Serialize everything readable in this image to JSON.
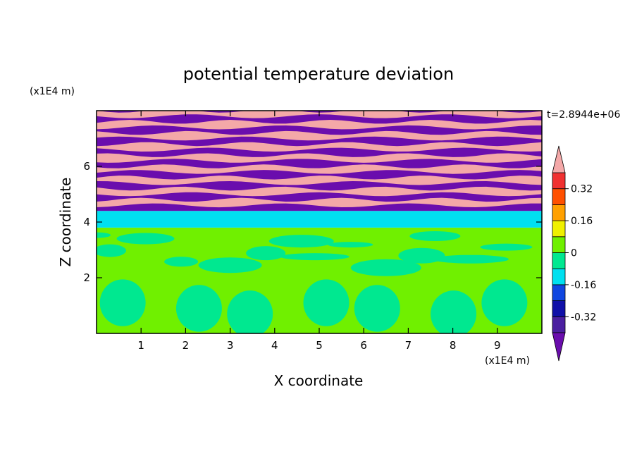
{
  "chart_data": {
    "type": "heatmap",
    "title": "potential temperature deviation",
    "xlabel": "X coordinate",
    "ylabel": "Z coordinate",
    "x_unit": "(x1E4 m)",
    "y_unit": "(x1E4 m)",
    "time_label": "t=2.8944e+06",
    "xlim": [
      0,
      10
    ],
    "ylim": [
      0,
      8
    ],
    "x_ticks": [
      1,
      2,
      3,
      4,
      5,
      6,
      7,
      8,
      9
    ],
    "y_ticks": [
      2,
      4,
      6
    ],
    "x_tick_labels": [
      "1",
      "2",
      "3",
      "4",
      "5",
      "6",
      "7",
      "8",
      "9"
    ],
    "y_tick_labels": [
      "2",
      "4",
      "6"
    ],
    "colorbar": {
      "levels": [
        -0.4,
        -0.32,
        -0.24,
        -0.16,
        -0.08,
        0,
        0.08,
        0.16,
        0.24,
        0.32,
        0.4
      ],
      "colors": [
        "#6a0dad",
        "#4b1fa0",
        "#1010a8",
        "#1046e0",
        "#00e0f0",
        "#00e890",
        "#70f000",
        "#f0f000",
        "#ffa000",
        "#ff5000",
        "#f03030",
        "#f4a8a8"
      ],
      "tick_labels": [
        "0.32",
        "0.16",
        "0",
        "-0.16",
        "-0.32"
      ],
      "tick_values": [
        0.32,
        0.16,
        0,
        -0.16,
        -0.32
      ]
    },
    "layers": [
      {
        "z_range": [
          0,
          2.0
        ],
        "dominant_value": 0.04,
        "secondary_value": -0.04,
        "pattern": "convective cells"
      },
      {
        "z_range": [
          2.0,
          3.8
        ],
        "dominant_value": 0.04,
        "secondary_value": -0.04,
        "pattern": "mixed"
      },
      {
        "z_range": [
          3.8,
          4.4
        ],
        "dominant_value": -0.12,
        "pattern": "uniform band"
      },
      {
        "z_range": [
          4.4,
          8.0
        ],
        "dominant_value": -0.44,
        "secondary_value": 0.44,
        "pattern": "alternating stripes"
      }
    ]
  }
}
